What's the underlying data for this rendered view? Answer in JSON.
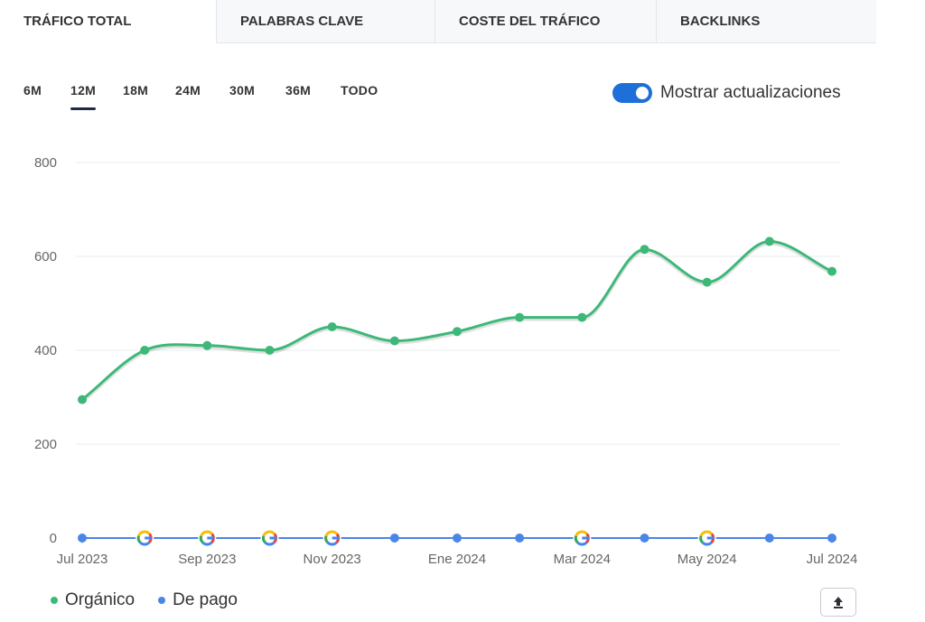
{
  "tabs": [
    {
      "label": "TRÁFICO TOTAL",
      "active": true
    },
    {
      "label": "PALABRAS CLAVE",
      "active": false
    },
    {
      "label": "COSTE DEL TRÁFICO",
      "active": false
    },
    {
      "label": "BACKLINKS",
      "active": false
    }
  ],
  "ranges": [
    {
      "label": "6M",
      "active": false
    },
    {
      "label": "12M",
      "active": true
    },
    {
      "label": "18M",
      "active": false
    },
    {
      "label": "24M",
      "active": false
    },
    {
      "label": "30M",
      "active": false
    },
    {
      "label": "36M",
      "active": false
    },
    {
      "label": "TODO",
      "active": false
    }
  ],
  "toggle": {
    "label": "Mostrar actualizaciones",
    "on": true
  },
  "colors": {
    "organic": "#3db879",
    "paid": "#4a86e8",
    "grid": "#e9ebee",
    "axis_text": "#666666",
    "toggle": "#1f6fd8"
  },
  "chart_data": {
    "type": "line",
    "title": "",
    "xlabel": "",
    "ylabel": "",
    "ylim": [
      0,
      800
    ],
    "yticks": [
      0,
      200,
      400,
      600,
      800
    ],
    "grid": true,
    "legend": "bottom-left",
    "x": [
      "2023-07",
      "2023-08",
      "2023-09",
      "2023-10",
      "2023-11",
      "2023-12",
      "2024-01",
      "2024-02",
      "2024-03",
      "2024-04",
      "2024-05",
      "2024-06",
      "2024-07"
    ],
    "xtick_labels": [
      {
        "index": 0,
        "label": "Jul 2023"
      },
      {
        "index": 2,
        "label": "Sep 2023"
      },
      {
        "index": 4,
        "label": "Nov 2023"
      },
      {
        "index": 6,
        "label": "Ene 2024"
      },
      {
        "index": 8,
        "label": "Mar 2024"
      },
      {
        "index": 10,
        "label": "May 2024"
      },
      {
        "index": 12,
        "label": "Jul 2024"
      }
    ],
    "series": [
      {
        "name": "Orgánico",
        "values": [
          295,
          400,
          410,
          400,
          450,
          420,
          440,
          470,
          470,
          615,
          545,
          632,
          568
        ]
      },
      {
        "name": "De pago",
        "values": [
          0,
          0,
          0,
          0,
          0,
          0,
          0,
          0,
          0,
          0,
          0,
          0,
          0
        ]
      }
    ],
    "google_update_markers": [
      1,
      2,
      3,
      4,
      8,
      10
    ]
  },
  "legend": [
    {
      "label": "Orgánico",
      "color_key": "organic"
    },
    {
      "label": "De pago",
      "color_key": "paid"
    }
  ],
  "export_icon": "upload-icon"
}
